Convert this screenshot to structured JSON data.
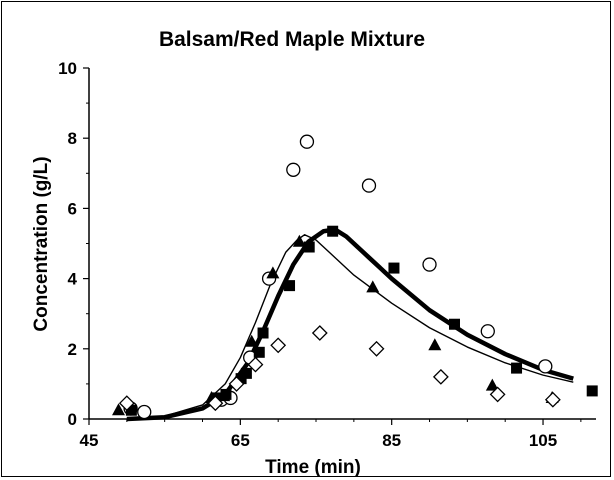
{
  "chart_data": {
    "type": "scatter",
    "title": "Balsam/Red Maple Mixture",
    "xlabel": "Time (min)",
    "ylabel": "Concentration (g/L)",
    "xlim": [
      45,
      112
    ],
    "ylim": [
      0,
      10
    ],
    "xticks": [
      "45",
      "65",
      "85",
      "105"
    ],
    "xtick_values": [
      45,
      65,
      85,
      105
    ],
    "yticks": [
      "0",
      "2",
      "4",
      "6",
      "8",
      "10"
    ],
    "ytick_values": [
      0,
      2,
      4,
      6,
      8,
      10
    ],
    "grid": false,
    "legend": "none",
    "series": [
      {
        "marker": "open-circle",
        "color": "#000000",
        "points": [
          [
            50.5,
            0.3
          ],
          [
            52.3,
            0.2
          ],
          [
            62.5,
            0.55
          ],
          [
            63.7,
            0.6
          ],
          [
            66.3,
            1.75
          ],
          [
            68.8,
            4.0
          ],
          [
            72.0,
            7.1
          ],
          [
            73.8,
            7.9
          ],
          [
            82.0,
            6.65
          ],
          [
            90.0,
            4.4
          ],
          [
            97.7,
            2.5
          ],
          [
            105.3,
            1.5
          ]
        ]
      },
      {
        "marker": "filled-square",
        "color": "#000000",
        "points": [
          [
            50.6,
            0.25
          ],
          [
            61.8,
            0.6
          ],
          [
            63.1,
            0.7
          ],
          [
            65.1,
            1.15
          ],
          [
            65.8,
            1.3
          ],
          [
            67.5,
            1.9
          ],
          [
            68.0,
            2.45
          ],
          [
            71.5,
            3.8
          ],
          [
            74.1,
            4.9
          ],
          [
            77.2,
            5.35
          ],
          [
            85.3,
            4.3
          ],
          [
            93.3,
            2.7
          ],
          [
            101.5,
            1.45
          ],
          [
            111.5,
            0.8
          ]
        ]
      },
      {
        "marker": "filled-triangle",
        "color": "#000000",
        "points": [
          [
            48.9,
            0.25
          ],
          [
            61.2,
            0.6
          ],
          [
            62.8,
            0.65
          ],
          [
            66.5,
            2.2
          ],
          [
            69.3,
            4.15
          ],
          [
            72.8,
            5.05
          ],
          [
            82.5,
            3.75
          ],
          [
            90.7,
            2.1
          ],
          [
            98.3,
            0.95
          ],
          [
            106.2,
            0.6
          ]
        ]
      },
      {
        "marker": "open-diamond",
        "color": "#000000",
        "points": [
          [
            50.0,
            0.45
          ],
          [
            61.7,
            0.45
          ],
          [
            64.5,
            1.0
          ],
          [
            67.0,
            1.55
          ],
          [
            70.0,
            2.1
          ],
          [
            75.5,
            2.45
          ],
          [
            83.0,
            2.0
          ],
          [
            91.5,
            1.2
          ],
          [
            99.0,
            0.7
          ],
          [
            106.3,
            0.55
          ]
        ]
      },
      {
        "type": "line",
        "style": "thick",
        "color": "#000000",
        "points": [
          [
            50,
            0
          ],
          [
            55,
            0.05
          ],
          [
            60,
            0.3
          ],
          [
            63,
            0.7
          ],
          [
            66,
            1.6
          ],
          [
            68,
            2.5
          ],
          [
            70,
            3.5
          ],
          [
            72,
            4.4
          ],
          [
            74,
            5.05
          ],
          [
            76,
            5.35
          ],
          [
            77.5,
            5.4
          ],
          [
            79,
            5.2
          ],
          [
            82,
            4.6
          ],
          [
            85,
            4.0
          ],
          [
            90,
            3.1
          ],
          [
            95,
            2.4
          ],
          [
            100,
            1.85
          ],
          [
            105,
            1.4
          ],
          [
            109,
            1.15
          ]
        ]
      },
      {
        "type": "line",
        "style": "thin",
        "color": "#000000",
        "points": [
          [
            50,
            0
          ],
          [
            55,
            0.08
          ],
          [
            60,
            0.4
          ],
          [
            63,
            1.0
          ],
          [
            65,
            1.75
          ],
          [
            67,
            2.75
          ],
          [
            69,
            3.85
          ],
          [
            71,
            4.75
          ],
          [
            72.5,
            5.1
          ],
          [
            73.5,
            5.25
          ],
          [
            75,
            5.1
          ],
          [
            77,
            4.7
          ],
          [
            80,
            4.1
          ],
          [
            85,
            3.3
          ],
          [
            90,
            2.6
          ],
          [
            95,
            2.05
          ],
          [
            100,
            1.6
          ],
          [
            105,
            1.25
          ],
          [
            109,
            1.05
          ]
        ]
      }
    ]
  }
}
